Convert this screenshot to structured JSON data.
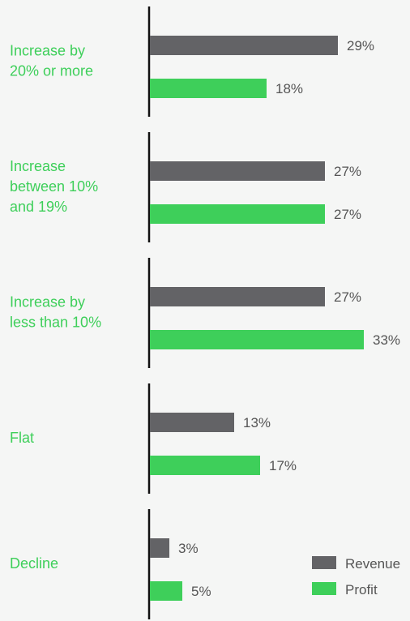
{
  "colors": {
    "background": "#f5f6f5",
    "revenue": "#636366",
    "profit": "#3ecf5a",
    "category_label": "#3ecf5a",
    "value_label": "#555555",
    "axis": "#111111",
    "legend_text": "#555555"
  },
  "legend": {
    "revenue_label": "Revenue",
    "profit_label": "Profit"
  },
  "chart_data": {
    "type": "bar",
    "orientation": "horizontal",
    "categories": [
      [
        "Increase by",
        "20% or more"
      ],
      [
        "Increase",
        "between 10%",
        "and 19%"
      ],
      [
        "Increase by",
        "less than 10%"
      ],
      [
        "Flat"
      ],
      [
        "Decline"
      ]
    ],
    "series": [
      {
        "name": "Revenue",
        "values": [
          29,
          27,
          27,
          13,
          3
        ],
        "labels": [
          "29%",
          "27%",
          "27%",
          "13%",
          "3%"
        ]
      },
      {
        "name": "Profit",
        "values": [
          18,
          27,
          33,
          17,
          5
        ],
        "labels": [
          "18%",
          "27%",
          "33%",
          "17%",
          "5%"
        ]
      }
    ],
    "value_unit": "%",
    "xlim": [
      0,
      33
    ],
    "legend_position": "bottom-right",
    "grid": false
  }
}
